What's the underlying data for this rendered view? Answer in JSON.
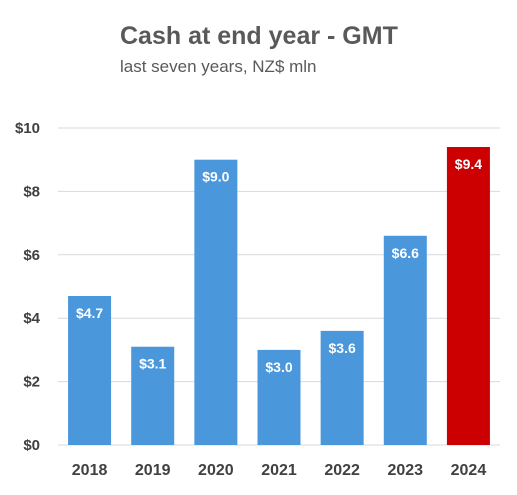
{
  "chart_data": {
    "type": "bar",
    "title": "Cash at end year - GMT",
    "subtitle": "last seven years, NZ$ mln",
    "categories": [
      "2018",
      "2019",
      "2020",
      "2021",
      "2022",
      "2023",
      "2024"
    ],
    "values": [
      4.7,
      3.1,
      9.0,
      3.0,
      3.6,
      6.6,
      9.4
    ],
    "data_labels": [
      "$4.7",
      "$3.1",
      "$9.0",
      "$3.0",
      "$3.6",
      "$6.6",
      "$9.4"
    ],
    "bar_colors": [
      "#4a97dc",
      "#4a97dc",
      "#4a97dc",
      "#4a97dc",
      "#4a97dc",
      "#4a97dc",
      "#cc0000"
    ],
    "y_ticks": [
      0,
      2,
      4,
      6,
      8,
      10
    ],
    "y_tick_labels": [
      "$0",
      "$2",
      "$4",
      "$6",
      "$8",
      "$10"
    ],
    "ylim": [
      0,
      10
    ],
    "xlabel": "",
    "ylabel": "",
    "grid": true,
    "legend": "none",
    "gridline_color": "#d9d9d9"
  }
}
